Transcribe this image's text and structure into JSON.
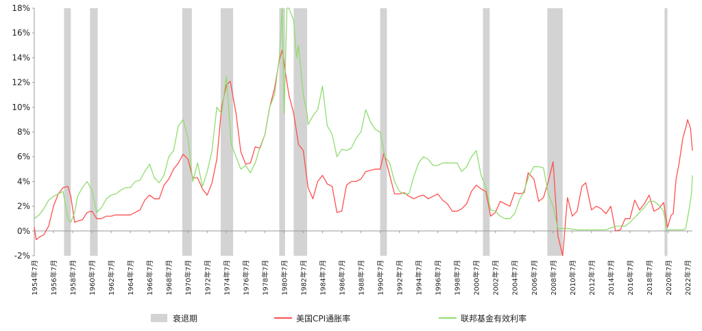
{
  "chart_data": {
    "type": "line",
    "title": "",
    "xlabel": "",
    "ylabel": "",
    "ylim": [
      -2,
      18
    ],
    "xlim": [
      1954.5,
      2023.0
    ],
    "y_ticks": [
      "-2%",
      "0%",
      "2%",
      "4%",
      "6%",
      "8%",
      "10%",
      "12%",
      "14%",
      "16%",
      "18%"
    ],
    "y_tick_values": [
      -2,
      0,
      2,
      4,
      6,
      8,
      10,
      12,
      14,
      16,
      18
    ],
    "x_ticks": [
      "1954年7月",
      "1956年7月",
      "1958年7月",
      "1960年7月",
      "1962年7月",
      "1964年7月",
      "1966年7月",
      "1968年7月",
      "1970年7月",
      "1972年7月",
      "1974年7月",
      "1976年7月",
      "1978年7月",
      "1980年7月",
      "1982年7月",
      "1984年7月",
      "1986年7月",
      "1988年7月",
      "1990年7月",
      "1992年7月",
      "1994年7月",
      "1996年7月",
      "1998年7月",
      "2000年7月",
      "2002年7月",
      "2004年7月",
      "2006年7月",
      "2008年7月",
      "2010年7月",
      "2012年7月",
      "2014年7月",
      "2016年7月",
      "2018年7月",
      "2020年7月",
      "2022年7月"
    ],
    "x_tick_values": [
      1954.5,
      1956.5,
      1958.5,
      1960.5,
      1962.5,
      1964.5,
      1966.5,
      1968.5,
      1970.5,
      1972.5,
      1974.5,
      1976.5,
      1978.5,
      1980.5,
      1982.5,
      1984.5,
      1986.5,
      1988.5,
      1990.5,
      1992.5,
      1994.5,
      1996.5,
      1998.5,
      2000.5,
      2002.5,
      2004.5,
      2006.5,
      2008.5,
      2010.5,
      2012.5,
      2014.5,
      2016.5,
      2018.5,
      2020.5,
      2022.5
    ],
    "grid": false,
    "legend_position": "bottom",
    "recessions": [
      {
        "start": 1957.6,
        "end": 1958.3
      },
      {
        "start": 1960.3,
        "end": 1961.1
      },
      {
        "start": 1969.9,
        "end": 1970.9
      },
      {
        "start": 1973.9,
        "end": 1975.2
      },
      {
        "start": 1980.0,
        "end": 1980.6
      },
      {
        "start": 1981.5,
        "end": 1982.9
      },
      {
        "start": 1990.5,
        "end": 1991.2
      },
      {
        "start": 2001.2,
        "end": 2001.9
      },
      {
        "start": 2007.9,
        "end": 2009.5
      },
      {
        "start": 2020.1,
        "end": 2020.4
      }
    ],
    "series": [
      {
        "name": "美国CPI通胀率",
        "color": "#ff4d4d",
        "x": [
          1954.5,
          1954.7,
          1955.0,
          1955.5,
          1956.0,
          1956.5,
          1957.0,
          1957.5,
          1958.0,
          1958.3,
          1958.7,
          1959.0,
          1959.5,
          1960.0,
          1960.5,
          1961.0,
          1961.5,
          1962.0,
          1962.5,
          1963.0,
          1963.5,
          1964.0,
          1964.5,
          1965.0,
          1965.5,
          1966.0,
          1966.5,
          1967.0,
          1967.5,
          1968.0,
          1968.5,
          1969.0,
          1969.5,
          1970.0,
          1970.5,
          1971.0,
          1971.5,
          1972.0,
          1972.5,
          1973.0,
          1973.5,
          1974.0,
          1974.5,
          1974.9,
          1975.5,
          1976.0,
          1976.5,
          1977.0,
          1977.5,
          1978.0,
          1978.5,
          1979.0,
          1979.5,
          1980.0,
          1980.3,
          1980.7,
          1981.0,
          1981.5,
          1982.0,
          1982.5,
          1983.0,
          1983.5,
          1984.0,
          1984.5,
          1985.0,
          1985.5,
          1986.0,
          1986.5,
          1987.0,
          1987.5,
          1988.0,
          1988.5,
          1989.0,
          1989.5,
          1990.0,
          1990.5,
          1990.9,
          1991.5,
          1992.0,
          1992.5,
          1993.0,
          1993.5,
          1994.0,
          1994.5,
          1995.0,
          1995.5,
          1996.0,
          1996.5,
          1997.0,
          1997.5,
          1998.0,
          1998.5,
          1999.0,
          1999.5,
          2000.0,
          2000.5,
          2001.0,
          2001.5,
          2002.0,
          2002.5,
          2003.0,
          2003.5,
          2004.0,
          2004.5,
          2005.0,
          2005.5,
          2005.9,
          2006.5,
          2007.0,
          2007.5,
          2008.0,
          2008.5,
          2009.0,
          2009.5,
          2010.0,
          2010.5,
          2011.0,
          2011.5,
          2011.9,
          2012.5,
          2013.0,
          2013.5,
          2014.0,
          2014.5,
          2015.0,
          2015.5,
          2016.0,
          2016.5,
          2017.0,
          2017.5,
          2018.0,
          2018.5,
          2019.0,
          2019.5,
          2020.0,
          2020.4,
          2020.8,
          2021.0,
          2021.3,
          2021.6,
          2022.0,
          2022.4,
          2022.5,
          2022.8,
          2023.0
        ],
        "values": [
          0.3,
          -0.7,
          -0.5,
          -0.3,
          0.4,
          2.0,
          3.0,
          3.5,
          3.6,
          2.8,
          0.7,
          0.8,
          0.9,
          1.5,
          1.6,
          1.0,
          1.0,
          1.2,
          1.2,
          1.3,
          1.3,
          1.3,
          1.3,
          1.5,
          1.7,
          2.5,
          2.9,
          2.6,
          2.6,
          3.7,
          4.2,
          5.0,
          5.5,
          6.2,
          5.8,
          4.3,
          4.3,
          3.4,
          2.9,
          3.9,
          5.8,
          10.0,
          11.8,
          12.1,
          9.5,
          6.4,
          5.4,
          5.5,
          6.8,
          6.7,
          7.8,
          10.0,
          11.5,
          13.8,
          14.6,
          12.5,
          11.0,
          9.5,
          7.0,
          6.5,
          3.5,
          2.6,
          4.0,
          4.5,
          3.8,
          3.6,
          1.5,
          1.6,
          3.7,
          4.0,
          4.0,
          4.2,
          4.8,
          4.9,
          5.0,
          5.0,
          6.3,
          4.5,
          3.0,
          3.0,
          3.1,
          2.8,
          2.6,
          2.8,
          2.9,
          2.6,
          2.8,
          3.0,
          2.5,
          2.2,
          1.6,
          1.6,
          1.8,
          2.2,
          3.2,
          3.7,
          3.4,
          3.2,
          1.2,
          1.5,
          2.4,
          2.2,
          2.0,
          3.1,
          3.0,
          3.1,
          4.7,
          4.2,
          2.4,
          2.7,
          4.0,
          5.6,
          -0.4,
          -2.0,
          2.7,
          1.2,
          1.6,
          3.6,
          3.9,
          1.7,
          2.0,
          1.8,
          1.4,
          2.0,
          0.0,
          0.1,
          1.0,
          1.0,
          2.5,
          1.7,
          2.2,
          2.9,
          1.6,
          1.8,
          2.3,
          0.3,
          1.3,
          1.4,
          4.2,
          5.4,
          7.5,
          8.6,
          9.0,
          8.3,
          6.5
        ],
        "y_clip": 5.0
      },
      {
        "name": "联邦基金有效利率",
        "color": "#8fdc6f",
        "x": [
          1954.5,
          1955.0,
          1955.5,
          1956.0,
          1956.5,
          1957.0,
          1957.5,
          1958.0,
          1958.3,
          1958.7,
          1959.0,
          1959.5,
          1960.0,
          1960.5,
          1961.0,
          1961.5,
          1962.0,
          1962.5,
          1963.0,
          1963.5,
          1964.0,
          1964.5,
          1965.0,
          1965.5,
          1966.0,
          1966.5,
          1967.0,
          1967.5,
          1968.0,
          1968.5,
          1969.0,
          1969.5,
          1970.0,
          1970.5,
          1971.0,
          1971.5,
          1972.0,
          1972.5,
          1973.0,
          1973.5,
          1974.0,
          1974.5,
          1975.0,
          1975.5,
          1976.0,
          1976.5,
          1977.0,
          1977.5,
          1978.0,
          1978.5,
          1979.0,
          1979.5,
          1980.0,
          1980.3,
          1980.5,
          1980.8,
          1981.0,
          1981.5,
          1981.8,
          1982.0,
          1982.5,
          1982.9,
          1983.0,
          1983.5,
          1984.0,
          1984.5,
          1985.0,
          1985.5,
          1986.0,
          1986.5,
          1987.0,
          1987.5,
          1988.0,
          1988.5,
          1989.0,
          1989.5,
          1990.0,
          1990.5,
          1991.0,
          1991.5,
          1992.0,
          1992.5,
          1993.0,
          1993.5,
          1994.0,
          1994.5,
          1995.0,
          1995.5,
          1996.0,
          1996.5,
          1997.0,
          1997.5,
          1998.0,
          1998.5,
          1999.0,
          1999.5,
          2000.0,
          2000.5,
          2001.0,
          2001.5,
          2002.0,
          2002.5,
          2003.0,
          2003.5,
          2004.0,
          2004.5,
          2005.0,
          2005.5,
          2006.0,
          2006.5,
          2007.0,
          2007.5,
          2008.0,
          2008.5,
          2009.0,
          2009.5,
          2010.0,
          2011.0,
          2012.0,
          2013.0,
          2014.0,
          2015.0,
          2016.0,
          2016.5,
          2017.0,
          2017.5,
          2018.0,
          2018.5,
          2019.0,
          2019.5,
          2020.0,
          2020.3,
          2020.8,
          2021.5,
          2022.0,
          2022.3,
          2022.6,
          2022.9,
          2023.0
        ],
        "values": [
          1.0,
          1.3,
          1.8,
          2.5,
          2.8,
          3.0,
          3.2,
          1.0,
          0.7,
          1.5,
          2.8,
          3.5,
          4.0,
          3.3,
          1.5,
          1.9,
          2.6,
          2.9,
          3.0,
          3.3,
          3.5,
          3.5,
          4.0,
          4.1,
          4.8,
          5.4,
          4.3,
          3.9,
          4.5,
          6.0,
          6.5,
          8.5,
          9.0,
          7.5,
          4.0,
          5.5,
          3.6,
          4.8,
          6.5,
          10.0,
          9.5,
          12.5,
          7.0,
          6.0,
          5.0,
          5.3,
          4.7,
          5.5,
          6.8,
          7.8,
          10.0,
          11.0,
          14.0,
          19.0,
          9.5,
          18.0,
          19.0,
          17.0,
          14.0,
          15.0,
          11.0,
          9.5,
          8.6,
          9.3,
          9.8,
          11.7,
          8.5,
          7.8,
          6.0,
          6.6,
          6.5,
          6.7,
          7.5,
          8.0,
          9.8,
          8.8,
          8.2,
          8.0,
          6.0,
          5.5,
          4.0,
          3.2,
          3.0,
          3.0,
          4.4,
          5.5,
          6.0,
          5.8,
          5.3,
          5.3,
          5.5,
          5.5,
          5.5,
          5.5,
          4.8,
          5.2,
          6.0,
          6.5,
          4.5,
          3.6,
          1.7,
          1.6,
          1.2,
          1.0,
          1.0,
          1.4,
          2.5,
          3.3,
          4.5,
          5.2,
          5.2,
          5.1,
          3.0,
          2.0,
          0.2,
          0.2,
          0.2,
          0.1,
          0.1,
          0.1,
          0.1,
          0.4,
          0.4,
          0.7,
          1.1,
          1.5,
          1.9,
          2.4,
          2.4,
          2.1,
          1.6,
          0.1,
          0.1,
          0.1,
          0.1,
          0.2,
          1.5,
          3.0,
          4.5
        ],
        "y_clip": null
      }
    ],
    "legend": [
      {
        "label": "衰退期",
        "kind": "box",
        "color": "#d3d3d3"
      },
      {
        "label": "美国CPI通胀率",
        "kind": "line",
        "color": "#ff4d4d"
      },
      {
        "label": "联邦基金有效利率",
        "kind": "line",
        "color": "#8fdc6f"
      }
    ]
  }
}
